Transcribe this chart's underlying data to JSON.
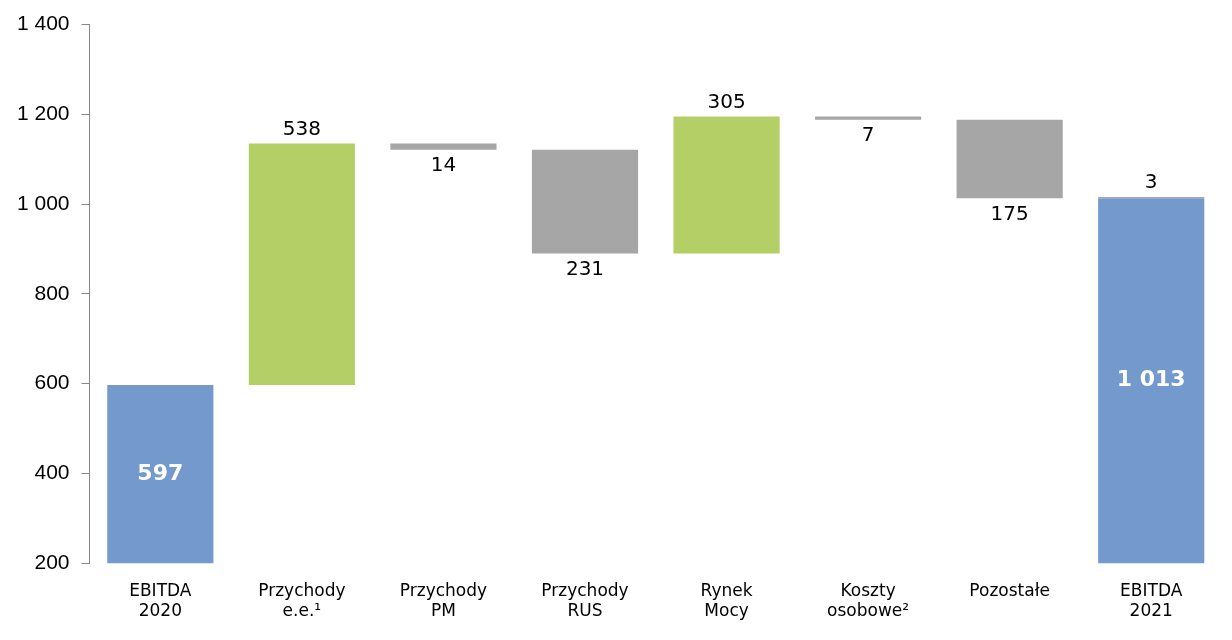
{
  "chart_data": {
    "type": "bar",
    "categories": [
      "EBITDA 2020",
      "Przychody e.e.¹",
      "Przychody PM",
      "Przychody RUS",
      "Rynek Mocy",
      "Koszty osobowe²",
      "Pozostałe",
      "EBITDA 2021"
    ],
    "series": [
      {
        "colors": [
          "#7399cd",
          "#b3cf66",
          "#a6a6a6",
          "#a6a6a6",
          "#b3cf66",
          "#a6a6a6",
          "#a6a6a6",
          "#7399cd"
        ],
        "base": [
          null,
          597,
          1135,
          1121,
          890,
          1195,
          1188,
          null
        ],
        "values": [
          597,
          538,
          -14,
          -231,
          305,
          -7,
          -175,
          1013
        ],
        "value_labels": [
          "597",
          "538",
          "14",
          "231",
          "305",
          "7",
          "175",
          "1 013"
        ]
      },
      {
        "colors": [
          null,
          null,
          null,
          null,
          null,
          null,
          null,
          "#a6a6a6"
        ],
        "base": [
          null,
          null,
          null,
          null,
          null,
          null,
          null,
          1013
        ],
        "values": [
          null,
          null,
          null,
          null,
          null,
          null,
          null,
          3
        ],
        "value_labels": [
          null,
          null,
          null,
          null,
          null,
          null,
          null,
          "3"
        ]
      }
    ],
    "ylim": [
      200,
      1400
    ],
    "yticks": [
      {
        "value": 200,
        "label": "200"
      },
      {
        "value": 400,
        "label": "400"
      },
      {
        "value": 600,
        "label": "600"
      },
      {
        "value": 800,
        "label": "800"
      },
      {
        "value": 1000,
        "label": "1 000"
      },
      {
        "value": 1200,
        "label": "1 200"
      },
      {
        "value": 1400,
        "label": "1 400"
      }
    ],
    "grid": false,
    "legend": false
  }
}
